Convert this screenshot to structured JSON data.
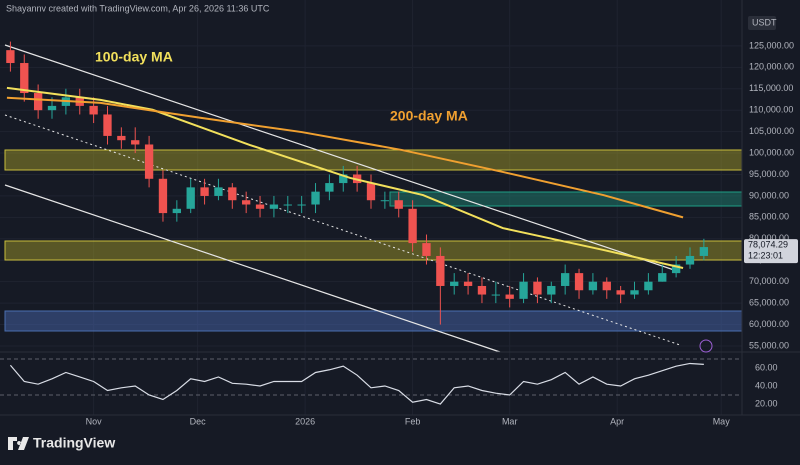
{
  "header": {
    "credit": "Shayannv created with TradingView.com, Apr 26, 2026 11:36 UTC"
  },
  "footer": {
    "brand": "TradingView"
  },
  "chart_data": [
    {
      "type": "candlestick",
      "currency": "USDT",
      "x": [
        -24,
        -20,
        -16,
        -12,
        -8,
        -4,
        0,
        4,
        8,
        12,
        16,
        20,
        24,
        28,
        32,
        36,
        40,
        44,
        48,
        52,
        56,
        60,
        64,
        68,
        72,
        76,
        80,
        84,
        88,
        92,
        96,
        100,
        104,
        108,
        112,
        116,
        120,
        124,
        128,
        132,
        136,
        140,
        144,
        148,
        152,
        156,
        160,
        164,
        168,
        172,
        176
      ],
      "open": [
        124000,
        121000,
        114000,
        110000,
        111000,
        113000,
        111000,
        109000,
        104000,
        103000,
        102000,
        94000,
        86000,
        87000,
        92000,
        90000,
        92000,
        89000,
        88000,
        87000,
        88000,
        88000,
        88000,
        91000,
        93000,
        95000,
        93000,
        89000,
        89000,
        87000,
        79000,
        76000,
        69000,
        70000,
        69000,
        67000,
        67000,
        66000,
        70000,
        67000,
        69000,
        72000,
        68000,
        70000,
        68000,
        67000,
        68000,
        70000,
        72000,
        74000,
        76000
      ],
      "high": [
        126000,
        123000,
        116000,
        113000,
        115000,
        115000,
        113000,
        111000,
        106000,
        106000,
        104000,
        96000,
        89000,
        94000,
        94000,
        94000,
        93000,
        91000,
        90000,
        90000,
        90000,
        90000,
        93000,
        95000,
        97000,
        97000,
        95000,
        91000,
        91000,
        89000,
        81000,
        78000,
        72000,
        72000,
        71000,
        70000,
        69000,
        72000,
        71000,
        70000,
        74000,
        73000,
        72000,
        71000,
        69000,
        70000,
        72000,
        74000,
        76000,
        78000,
        80000
      ],
      "low": [
        119000,
        112000,
        108000,
        108000,
        109000,
        109000,
        107000,
        102000,
        101000,
        100000,
        92000,
        84000,
        84000,
        86000,
        88000,
        89000,
        87000,
        86000,
        85000,
        85000,
        86000,
        86000,
        86000,
        89000,
        91000,
        91000,
        87000,
        87000,
        85000,
        77000,
        74000,
        60000,
        67000,
        67000,
        65000,
        65000,
        64000,
        65000,
        65000,
        65000,
        67000,
        66000,
        67000,
        66000,
        65000,
        66000,
        67000,
        70000,
        71000,
        73000,
        75000
      ],
      "close": [
        121000,
        114000,
        110000,
        111000,
        113000,
        111000,
        109000,
        104000,
        103000,
        102000,
        94000,
        86000,
        87000,
        92000,
        90000,
        92000,
        89000,
        88000,
        87000,
        88000,
        88000,
        88000,
        91000,
        93000,
        95000,
        93000,
        89000,
        89000,
        87000,
        79000,
        76000,
        69000,
        70000,
        69000,
        67000,
        67000,
        66000,
        70000,
        67000,
        69000,
        72000,
        68000,
        70000,
        68000,
        67000,
        68000,
        70000,
        72000,
        74000,
        76000,
        78074.29
      ],
      "up_color": "#26a69a",
      "down_color": "#ef5350",
      "series": [
        {
          "name": "100-day MA",
          "color": "#f2e05c",
          "x": [
            -25,
            2,
            17,
            45,
            74,
            95,
            118,
            147,
            170
          ],
          "values": [
            115200,
            112400,
            110100,
            101900,
            94200,
            90200,
            82500,
            77400,
            73200
          ]
        },
        {
          "name": "200-day MA",
          "color": "#f0a030",
          "x": [
            -25,
            2,
            31,
            60,
            89,
            118,
            147,
            170
          ],
          "values": [
            112900,
            111700,
            108200,
            104900,
            100700,
            95600,
            90200,
            85000
          ]
        }
      ],
      "last_price": {
        "value": 78074.29,
        "label": "78,074.29"
      },
      "countdown": "12:23:01",
      "xlim": [
        -27,
        187
      ],
      "xticks": [
        {
          "value": 0,
          "label": "Nov"
        },
        {
          "value": 30,
          "label": "Dec"
        },
        {
          "value": 61,
          "label": "2026"
        },
        {
          "value": 92,
          "label": "Feb"
        },
        {
          "value": 120,
          "label": "Mar"
        },
        {
          "value": 151,
          "label": "Apr"
        },
        {
          "value": 181,
          "label": "May"
        }
      ],
      "ylim": [
        53600,
        135700
      ],
      "yticks": [
        {
          "value": 55000,
          "label": "55,000.00"
        },
        {
          "value": 60000,
          "label": "60,000.00"
        },
        {
          "value": 65000,
          "label": "65,000.00"
        },
        {
          "value": 70000,
          "label": "70,000.00"
        },
        {
          "value": 75000,
          "label": "75,000.00"
        },
        {
          "value": 80000,
          "label": "80,000.00"
        },
        {
          "value": 85000,
          "label": "85,000.00"
        },
        {
          "value": 90000,
          "label": "90,000.00"
        },
        {
          "value": 95000,
          "label": "95,000.00"
        },
        {
          "value": 100000,
          "label": "100,000.00"
        },
        {
          "value": 105000,
          "label": "105,000.00"
        },
        {
          "value": 110000,
          "label": "110,000.00"
        },
        {
          "value": 115000,
          "label": "115,000.00"
        },
        {
          "value": 120000,
          "label": "120,000.00"
        },
        {
          "value": 125000,
          "label": "125,000.00"
        }
      ],
      "grid": true
    },
    {
      "type": "line",
      "x": [
        -24,
        -20,
        -16,
        -12,
        -8,
        -4,
        0,
        4,
        8,
        12,
        16,
        20,
        24,
        28,
        32,
        36,
        40,
        44,
        48,
        52,
        56,
        60,
        64,
        68,
        72,
        76,
        80,
        84,
        88,
        92,
        96,
        100,
        104,
        108,
        112,
        116,
        120,
        124,
        128,
        132,
        136,
        140,
        144,
        148,
        152,
        156,
        160,
        164,
        168,
        172,
        176
      ],
      "series": [
        {
          "color": "#d9dde6",
          "values": [
            63,
            45,
            42,
            48,
            55,
            50,
            45,
            35,
            38,
            40,
            30,
            25,
            35,
            48,
            45,
            50,
            43,
            42,
            40,
            45,
            45,
            45,
            55,
            58,
            62,
            52,
            38,
            40,
            35,
            22,
            25,
            20,
            38,
            40,
            35,
            32,
            30,
            45,
            42,
            47,
            55,
            42,
            50,
            42,
            40,
            48,
            52,
            57,
            62,
            65,
            64
          ]
        }
      ],
      "levels": [
        30,
        70
      ],
      "xlim": [
        -27,
        187
      ],
      "ylim": [
        7.8,
        74.4
      ],
      "yticks": [
        {
          "value": 20,
          "label": "20.00"
        },
        {
          "value": 40,
          "label": "40.00"
        },
        {
          "value": 60,
          "label": "60.00"
        }
      ]
    }
  ]
}
